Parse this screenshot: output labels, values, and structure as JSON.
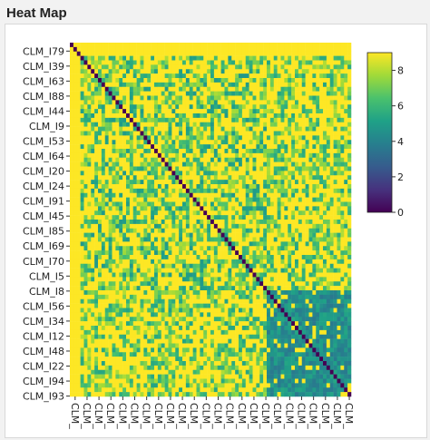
{
  "panel": {
    "title": "Heat Map"
  },
  "chart_data": {
    "type": "heatmap",
    "n": 80,
    "y_tick_labels": [
      "CLM_I79",
      "CLM_I39",
      "CLM_I63",
      "CLM_I88",
      "CLM_I44",
      "CLM_I9",
      "CLM_I53",
      "CLM_I64",
      "CLM_I20",
      "CLM_I24",
      "CLM_I91",
      "CLM_I45",
      "CLM_I85",
      "CLM_I69",
      "CLM_I70",
      "CLM_I5",
      "CLM_I8",
      "CLM_I56",
      "CLM_I34",
      "CLM_I12",
      "CLM_I48",
      "CLM_I22",
      "CLM_I94",
      "CLM_I93"
    ],
    "x_tick_label": "CLM_",
    "x_tick_count": 24,
    "value_range": [
      0,
      9
    ],
    "colorbar": {
      "ticks": [
        0,
        2,
        4,
        6,
        8
      ],
      "colors": [
        "#440154",
        "#46327e",
        "#365c8d",
        "#277f8e",
        "#1fa187",
        "#4ac16d",
        "#a0da39",
        "#fde725"
      ]
    },
    "clusters": [
      {
        "range": [
          0,
          2
        ],
        "level": 8.8
      },
      {
        "range": [
          3,
          55
        ],
        "level": 6.5
      },
      {
        "range": [
          56,
          80
        ],
        "level": 4.5
      }
    ],
    "diagonal_value": 0
  }
}
